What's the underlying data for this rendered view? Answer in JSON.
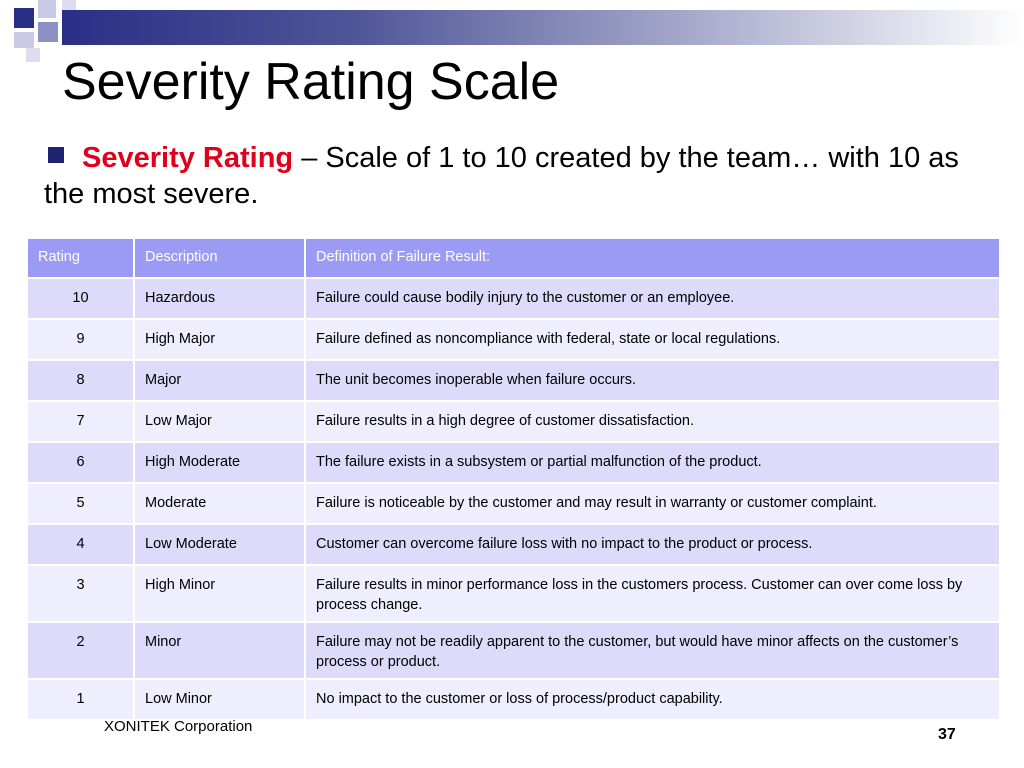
{
  "slide": {
    "title": "Severity Rating Scale",
    "bullet": {
      "term": "Severity Rating",
      "text": " – Scale of 1 to 10 created by the team… with 10 as the most severe."
    },
    "table": {
      "headers": [
        "Rating",
        "Description",
        "Definition of Failure Result:"
      ],
      "rows": [
        {
          "rating": "10",
          "description": "Hazardous",
          "definition": "Failure could cause bodily injury to the customer or an employee."
        },
        {
          "rating": "9",
          "description": "High Major",
          "definition": "Failure defined as noncompliance with federal, state or local regulations."
        },
        {
          "rating": "8",
          "description": "Major",
          "definition": "The unit  becomes inoperable when failure occurs."
        },
        {
          "rating": "7",
          "description": "Low Major",
          "definition": "Failure results in a high degree of customer dissatisfaction."
        },
        {
          "rating": "6",
          "description": "High Moderate",
          "definition": "The failure exists in a subsystem or partial malfunction of the product."
        },
        {
          "rating": "5",
          "description": "Moderate",
          "definition": "Failure is noticeable by the customer and may result  in warranty or customer complaint."
        },
        {
          "rating": "4",
          "description": "Low Moderate",
          "definition": "Customer can overcome failure loss with no impact to the product or process."
        },
        {
          "rating": "3",
          "description": "High Minor",
          "definition": "Failure results in minor performance loss in the customers process.  Customer can over come  loss by process change."
        },
        {
          "rating": "2",
          "description": "Minor",
          "definition": "Failure may not be readily apparent to the customer, but would have minor affects on the customer’s process or product."
        },
        {
          "rating": "1",
          "description": "Low Minor",
          "definition": "No impact to the customer or loss of process/product capability."
        }
      ]
    },
    "footer": {
      "company": "XONITEK Corporation",
      "page_number": "37"
    }
  },
  "colors": {
    "accent_navy": "#1f2470",
    "term_red": "#e0001b",
    "header_fill": "#9b9bf6",
    "row_fill_dark": "#dcdcfa",
    "row_fill_light": "#eeeefc"
  }
}
